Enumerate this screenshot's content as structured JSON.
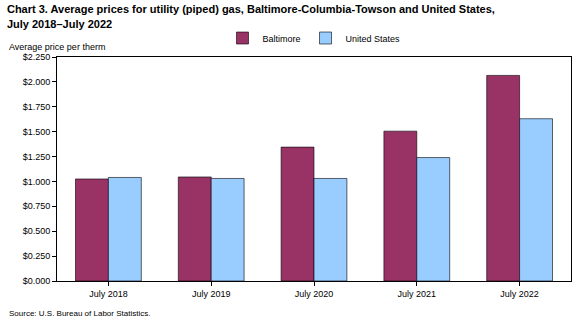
{
  "chart_data": {
    "type": "bar",
    "title": "Chart 3. Average prices for utility (piped) gas, Baltimore-Columbia-Towson and United States,",
    "subtitle": "July 2018–July 2022",
    "ylabel": "Average price per therm",
    "annotations": [
      "Source: U.S. Bureau of Labor Statistics."
    ],
    "categories": [
      "July 2018",
      "July 2019",
      "July 2020",
      "July 2021",
      "July 2022"
    ],
    "series": [
      {
        "name": "Baltimore",
        "color": "#993366",
        "values": [
          1.025,
          1.045,
          1.345,
          1.505,
          2.065
        ]
      },
      {
        "name": "United States",
        "color": "#99ccff",
        "values": [
          1.04,
          1.03,
          1.03,
          1.24,
          1.63
        ]
      }
    ],
    "ylim": [
      0,
      2.25
    ],
    "yticks": [
      {
        "value": 0,
        "label": "$0.000"
      },
      {
        "value": 0.25,
        "label": "$0.250"
      },
      {
        "value": 0.5,
        "label": "$0.500"
      },
      {
        "value": 0.75,
        "label": "$0.750"
      },
      {
        "value": 1,
        "label": "$1.000"
      },
      {
        "value": 1.25,
        "label": "$1.250"
      },
      {
        "value": 1.5,
        "label": "$1.500"
      },
      {
        "value": 1.75,
        "label": "$1.750"
      },
      {
        "value": 2,
        "label": "$2.000"
      },
      {
        "value": 2.25,
        "label": "$2.250"
      }
    ],
    "grid": false,
    "legend": "top",
    "data_labels": false
  }
}
